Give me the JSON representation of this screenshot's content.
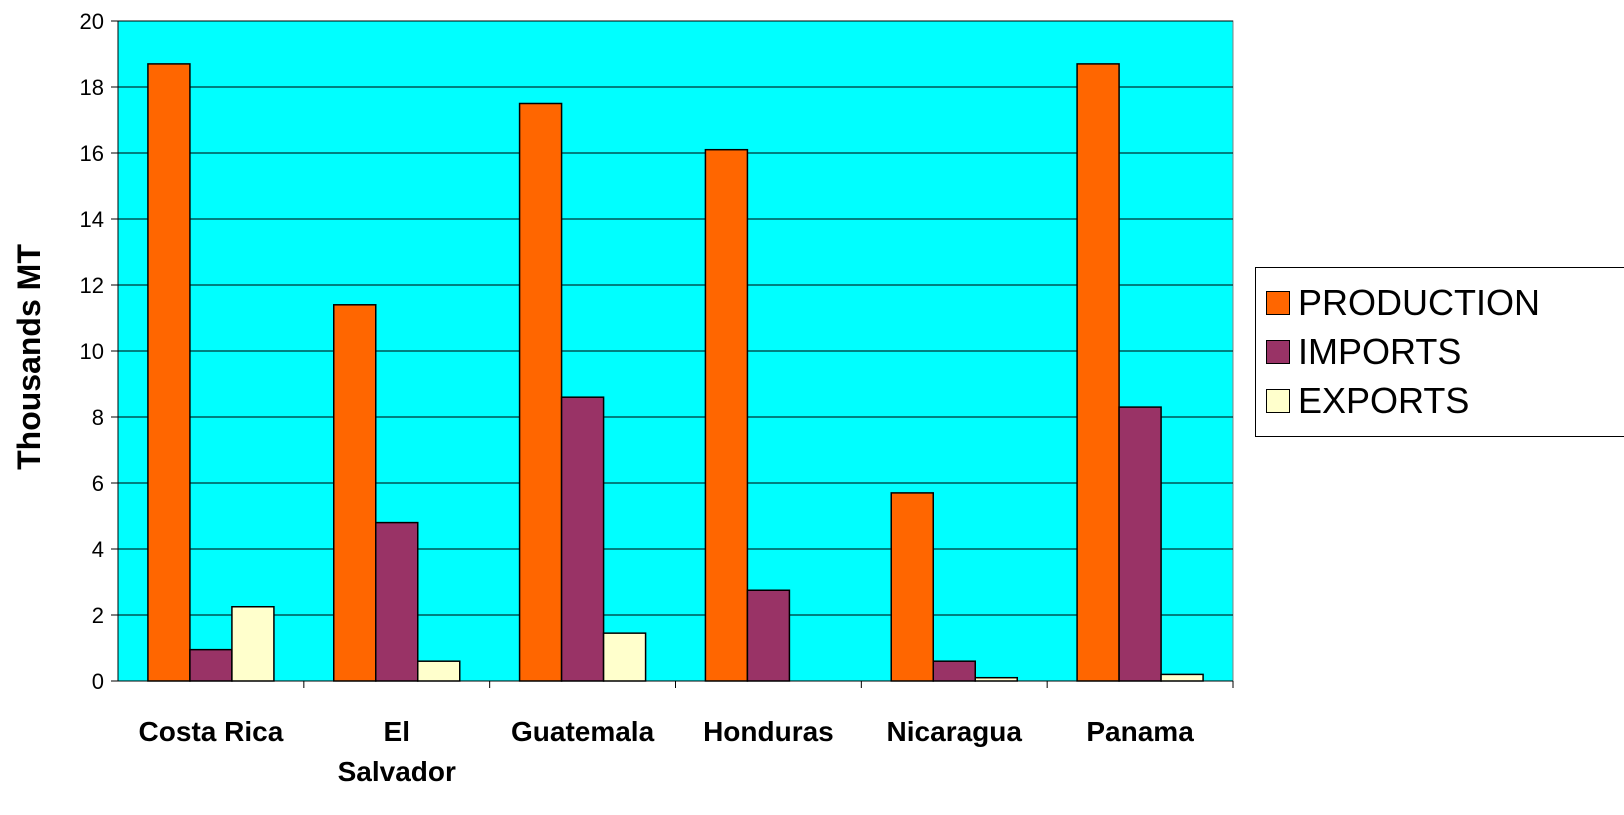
{
  "chart_data": {
    "type": "bar",
    "categories": [
      "Costa Rica",
      "El Salvador",
      "Guatemala",
      "Honduras",
      "Nicaragua",
      "Panama"
    ],
    "series": [
      {
        "name": "PRODUCTION",
        "color": "#FF6600",
        "values": [
          18.7,
          11.4,
          17.5,
          16.1,
          5.7,
          18.7
        ]
      },
      {
        "name": "IMPORTS",
        "color": "#993366",
        "values": [
          0.95,
          4.8,
          8.6,
          2.75,
          0.6,
          8.3
        ]
      },
      {
        "name": "EXPORTS",
        "color": "#FFFFCC",
        "values": [
          2.25,
          0.6,
          1.45,
          0.0,
          0.1,
          0.2
        ]
      }
    ],
    "ylabel": "Thousands MT",
    "xlabel": "",
    "ylim": [
      0,
      20
    ],
    "yticks": [
      0,
      2,
      4,
      6,
      8,
      10,
      12,
      14,
      16,
      18,
      20
    ],
    "grid": true,
    "plot_background": "#00FFFF",
    "legend_position": "right"
  }
}
